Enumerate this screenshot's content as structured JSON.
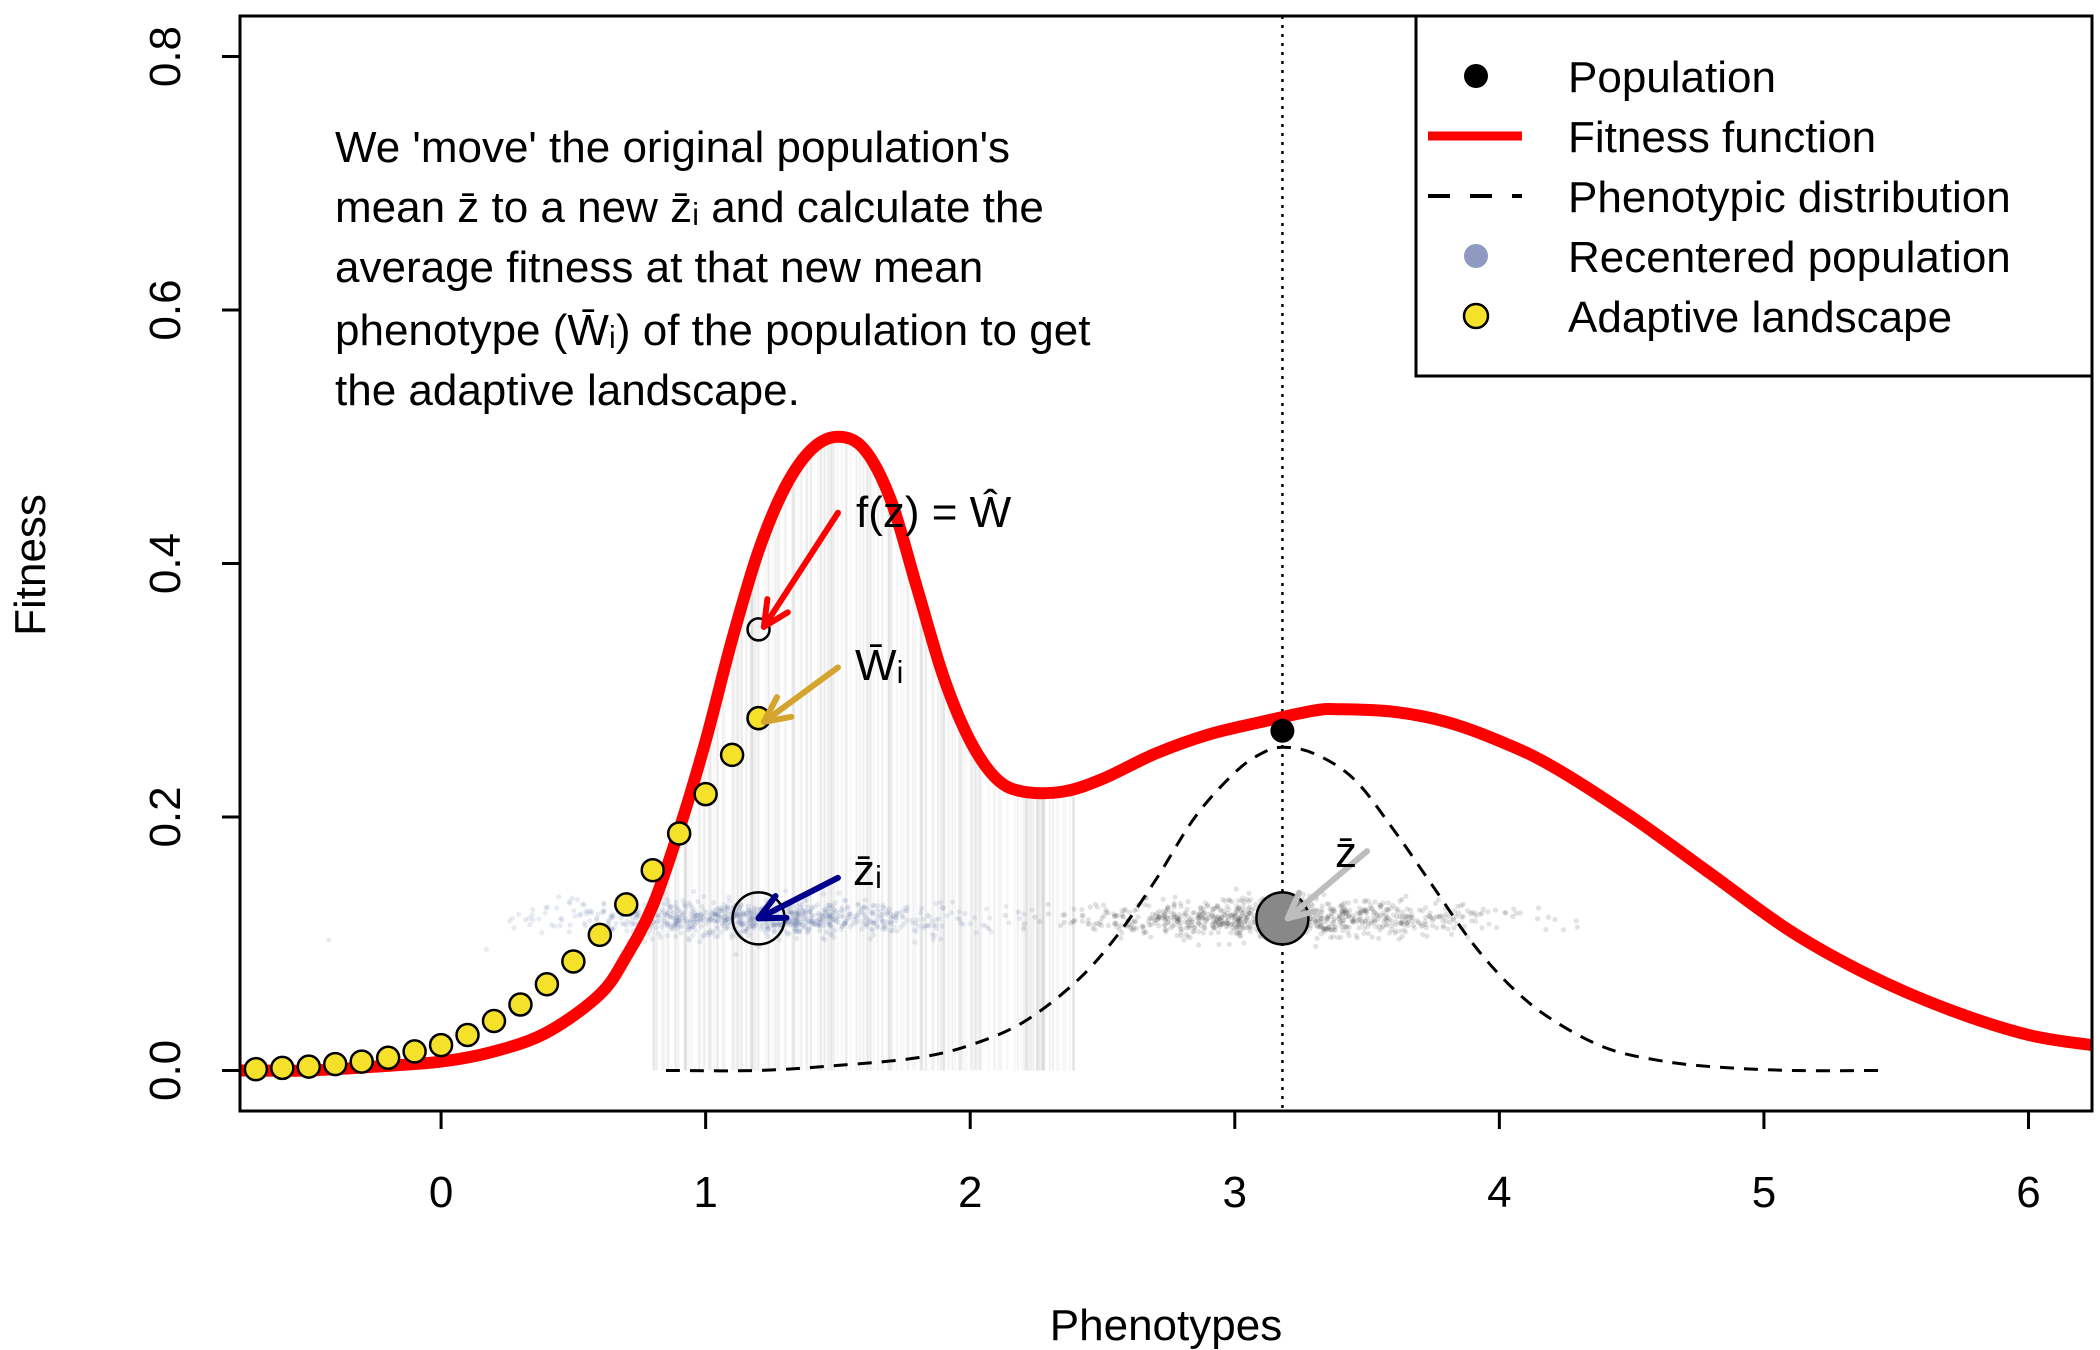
{
  "chart_data": {
    "type": "scatter",
    "xlabel": "Phenotypes",
    "ylabel": "Fitness",
    "xlim": [
      -0.76,
      6.24
    ],
    "ylim": [
      -0.032,
      0.832
    ],
    "xticks": [
      0,
      1,
      2,
      3,
      4,
      5,
      6
    ],
    "yticks": [
      0.0,
      0.2,
      0.4,
      0.6,
      0.8
    ],
    "xtick_labels": [
      "0",
      "1",
      "2",
      "3",
      "4",
      "5",
      "6"
    ],
    "ytick_labels": [
      "0.0",
      "0.2",
      "0.4",
      "0.6",
      "0.8"
    ],
    "grid": false,
    "legend_position": "top-right",
    "annotation": {
      "lines": [
        "We 'move' the original population's",
        "mean z̄ to a new z̄ᵢ and calculate the",
        "average fitness at that new mean",
        "phenotype (W̄ᵢ) of the population to get",
        "the adaptive landscape."
      ]
    },
    "labels": {
      "fitness_function": "f(z) = Ŵ",
      "mean_fitness": "W̄ᵢ",
      "new_mean": "z̄ᵢ",
      "original_mean": "z̄"
    },
    "legend": [
      {
        "label": "Population",
        "symbol": "dot",
        "color": "#000000"
      },
      {
        "label": "Fitness function",
        "symbol": "line",
        "color": "#ff0000"
      },
      {
        "label": "Phenotypic distribution",
        "symbol": "dash",
        "color": "#000000"
      },
      {
        "label": "Recentered population",
        "symbol": "dot",
        "color": "#8e9ac0"
      },
      {
        "label": "Adaptive landscape",
        "symbol": "circle",
        "color": "#f5e12a"
      }
    ],
    "series": [
      {
        "name": "Fitness function",
        "style": "line",
        "color": "#ff0000",
        "x": [
          -0.76,
          -0.5,
          -0.25,
          0.0,
          0.2,
          0.4,
          0.6,
          0.7,
          0.8,
          0.9,
          1.0,
          1.1,
          1.2,
          1.3,
          1.4,
          1.5,
          1.6,
          1.7,
          1.8,
          1.9,
          2.0,
          2.1,
          2.2,
          2.35,
          2.5,
          2.7,
          2.9,
          3.1,
          3.3,
          3.4,
          3.6,
          3.8,
          4.0,
          4.2,
          4.5,
          4.8,
          5.1,
          5.4,
          5.7,
          6.0,
          6.24
        ],
        "y": [
          0.0,
          0.0,
          0.003,
          0.007,
          0.015,
          0.03,
          0.06,
          0.09,
          0.13,
          0.19,
          0.26,
          0.34,
          0.41,
          0.46,
          0.49,
          0.5,
          0.49,
          0.45,
          0.38,
          0.31,
          0.26,
          0.23,
          0.22,
          0.22,
          0.23,
          0.25,
          0.265,
          0.275,
          0.284,
          0.285,
          0.283,
          0.275,
          0.26,
          0.24,
          0.2,
          0.155,
          0.11,
          0.075,
          0.048,
          0.028,
          0.02
        ]
      },
      {
        "name": "Phenotypic distribution",
        "style": "dashed",
        "color": "#000000",
        "x": [
          0.85,
          1.2,
          1.5,
          1.8,
          2.0,
          2.2,
          2.4,
          2.55,
          2.7,
          2.85,
          3.0,
          3.1,
          3.18,
          3.3,
          3.45,
          3.6,
          3.75,
          3.9,
          4.05,
          4.2,
          4.4,
          4.6,
          4.8,
          5.1,
          5.45
        ],
        "y": [
          0.0,
          0.0,
          0.004,
          0.01,
          0.02,
          0.038,
          0.07,
          0.105,
          0.15,
          0.2,
          0.235,
          0.25,
          0.255,
          0.25,
          0.23,
          0.19,
          0.145,
          0.1,
          0.065,
          0.04,
          0.018,
          0.008,
          0.003,
          0.0,
          0.0
        ]
      },
      {
        "name": "Adaptive landscape",
        "style": "points",
        "color": "#f5e12a",
        "x": [
          -0.7,
          -0.6,
          -0.5,
          -0.4,
          -0.3,
          -0.2,
          -0.1,
          0.0,
          0.1,
          0.2,
          0.3,
          0.4,
          0.5,
          0.6,
          0.7,
          0.8,
          0.9,
          1.0,
          1.1,
          1.2
        ],
        "y": [
          0.001,
          0.002,
          0.003,
          0.005,
          0.007,
          0.01,
          0.015,
          0.02,
          0.028,
          0.039,
          0.052,
          0.068,
          0.086,
          0.107,
          0.131,
          0.158,
          0.187,
          0.218,
          0.249,
          0.278
        ]
      },
      {
        "name": "Population",
        "style": "point",
        "color": "#000000",
        "x": [
          3.18
        ],
        "y": [
          0.268
        ]
      }
    ],
    "reference_lines": {
      "vertical_x": 3.18
    },
    "population_cloud": {
      "center_x": 3.18,
      "y": 0.12
    },
    "recentered_cloud": {
      "center_x": 1.2,
      "y": 0.12
    },
    "mean_markers": [
      {
        "x": 1.2,
        "y": 0.12,
        "color": "#ffffff"
      },
      {
        "x": 3.18,
        "y": 0.12,
        "color": "#888888"
      }
    ],
    "highlight_points": [
      {
        "x": 1.2,
        "y": 0.348
      },
      {
        "x": 1.2,
        "y": 0.278
      }
    ],
    "arrows": [
      {
        "from": [
          1.5,
          0.44
        ],
        "to": [
          1.22,
          0.35
        ],
        "color": "#ff0000"
      },
      {
        "from": [
          1.5,
          0.318
        ],
        "to": [
          1.22,
          0.275
        ],
        "color": "#d4a52e"
      },
      {
        "from": [
          1.5,
          0.152
        ],
        "to": [
          1.2,
          0.12
        ],
        "color": "#00008b"
      },
      {
        "from": [
          3.5,
          0.173
        ],
        "to": [
          3.2,
          0.12
        ],
        "color": "#bdbdbd"
      }
    ]
  }
}
